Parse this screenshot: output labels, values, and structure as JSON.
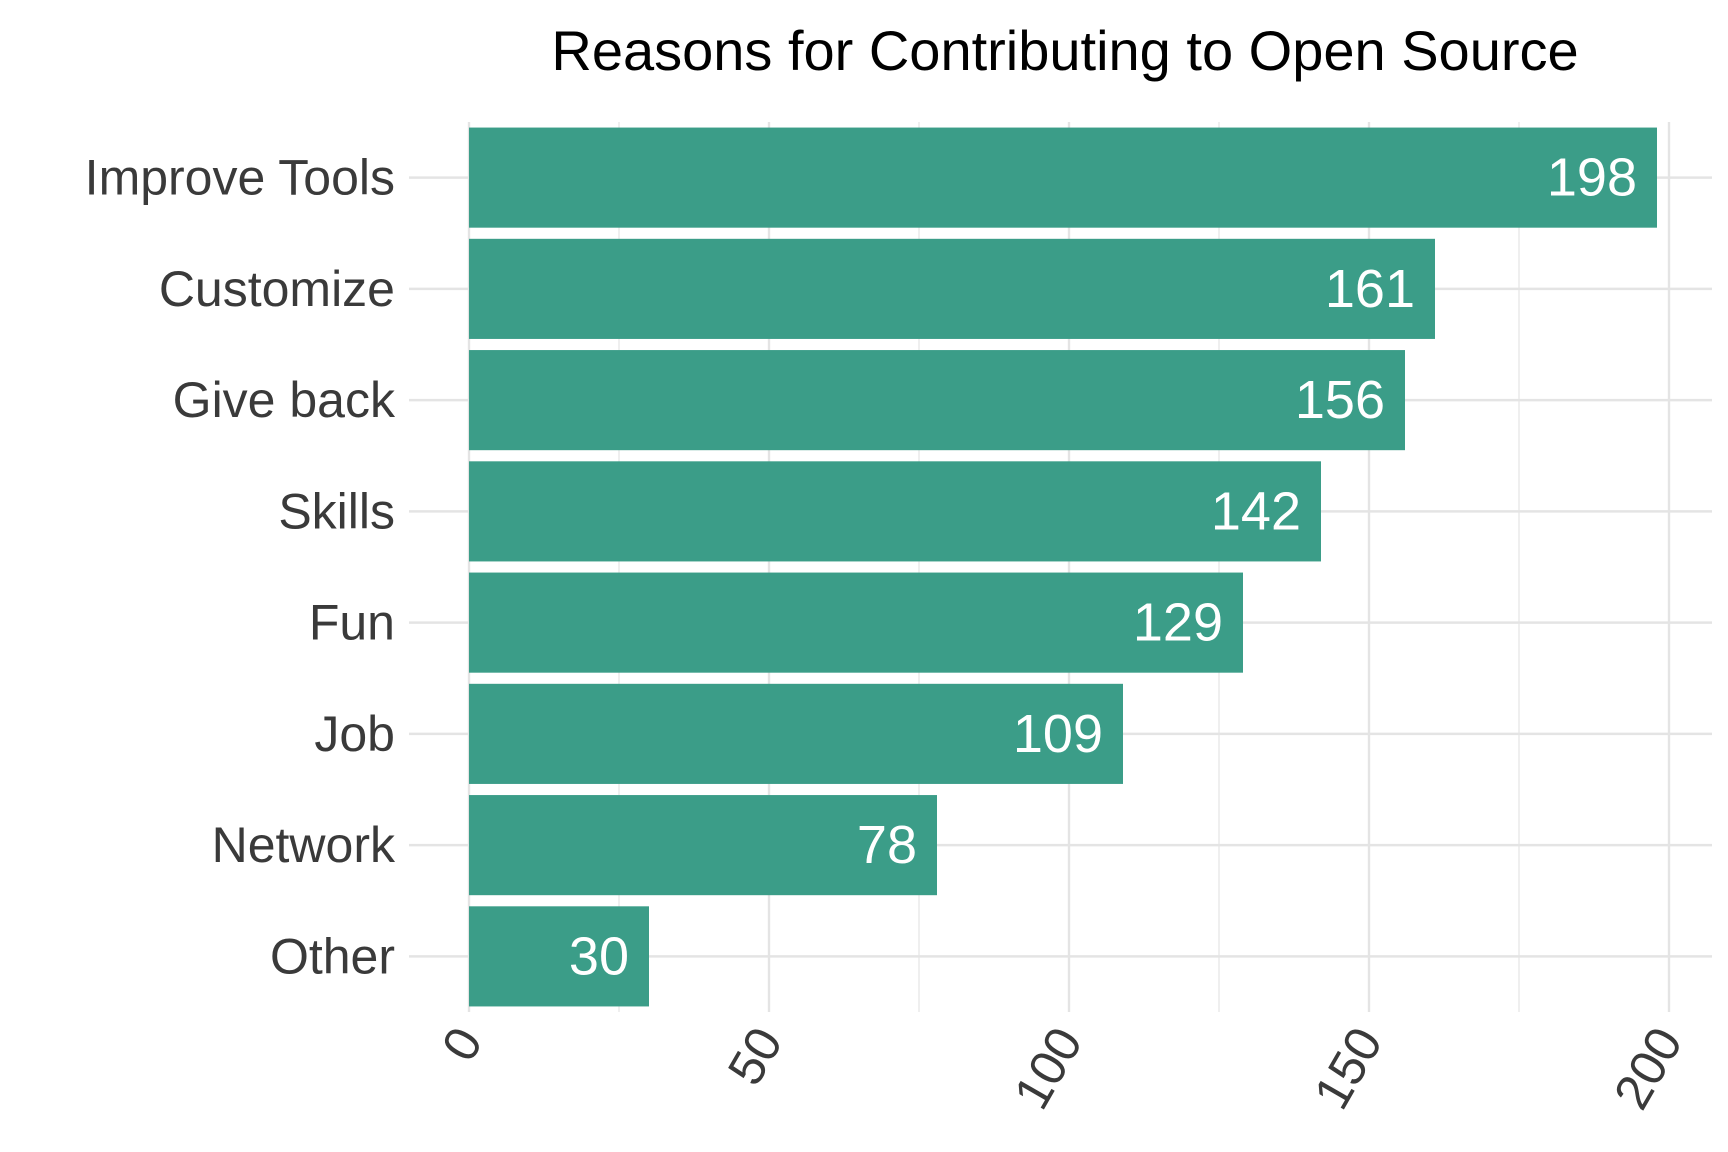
{
  "chart_data": {
    "type": "bar",
    "orientation": "horizontal",
    "title": "Reasons for Contributing to Open Source",
    "xlabel": "",
    "ylabel": "",
    "categories": [
      "Improve Tools",
      "Customize",
      "Give back",
      "Skills",
      "Fun",
      "Job",
      "Network",
      "Other"
    ],
    "values": [
      198,
      161,
      156,
      142,
      129,
      109,
      78,
      30
    ],
    "xlim": [
      0,
      200
    ],
    "xticks": [
      0,
      50,
      100,
      150,
      200
    ],
    "tick_labels": [
      "0",
      "50",
      "100",
      "150",
      "200"
    ],
    "xtick_rotation": -60,
    "bar_color": "#3b9d88",
    "grid_color": "#e4e4e4",
    "grid": true,
    "legend": "none",
    "data_labels": true
  }
}
